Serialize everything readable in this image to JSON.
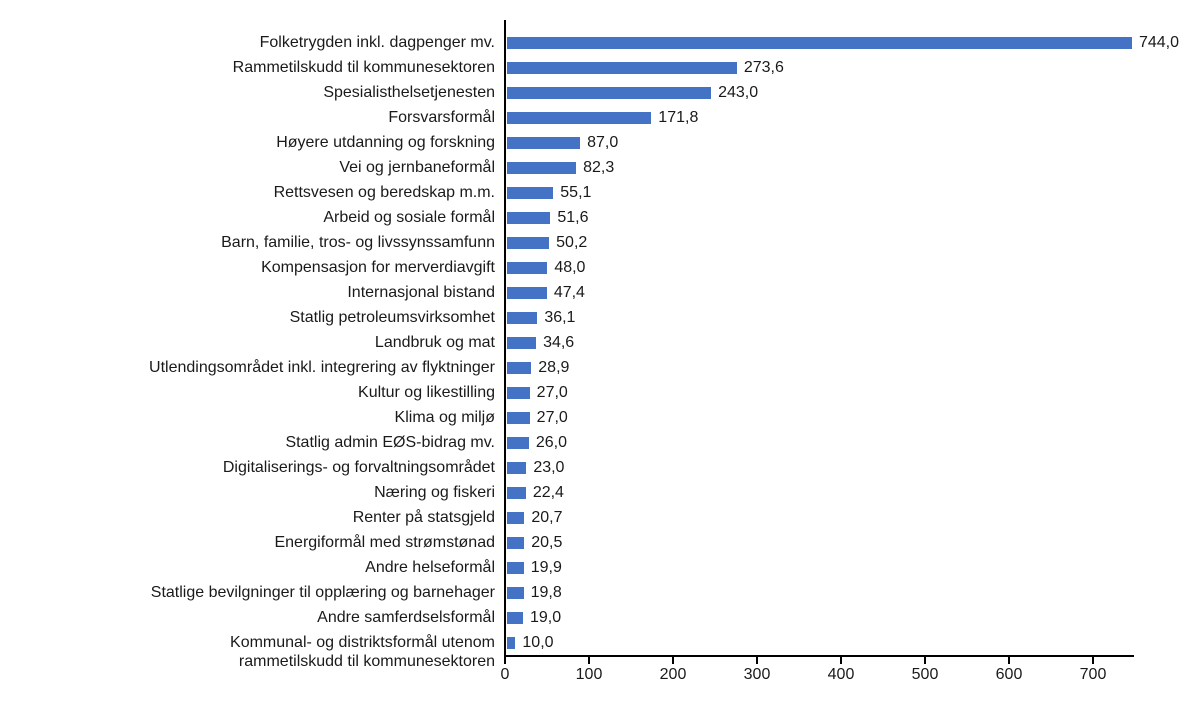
{
  "chart_data": {
    "type": "bar",
    "orientation": "horizontal",
    "title": "",
    "xlabel": "",
    "ylabel": "",
    "xlim": [
      0,
      750
    ],
    "xticks": [
      0,
      100,
      200,
      300,
      400,
      500,
      600,
      700
    ],
    "grid": false,
    "legend": false,
    "bar_color": "#4472C4",
    "axis_color": "#000000",
    "categories": [
      "Folketrygden inkl. dagpenger mv.",
      "Rammetilskudd til kommunesektoren",
      "Spesialisthelsetjenesten",
      "Forsvarsformål",
      "Høyere utdanning og forskning",
      "Vei og jernbaneformål",
      "Rettsvesen og beredskap m.m.",
      "Arbeid og sosiale formål",
      "Barn, familie, tros- og livssynssamfunn",
      "Kompensasjon for merverdiavgift",
      "Internasjonal bistand",
      "Statlig petroleumsvirksomhet",
      "Landbruk og mat",
      "Utlendingsområdet inkl. integrering av flyktninger",
      "Kultur og likestilling",
      "Klima og miljø",
      "Statlig admin EØS-bidrag mv.",
      "Digitaliserings- og forvaltningsområdet",
      "Næring og fiskeri",
      "Renter på statsgjeld",
      "Energiformål med strømstønad",
      "Andre helseformål",
      "Statlige bevilgninger til opplæring og barnehager",
      "Andre samferdselsformål",
      "Kommunal- og distriktsformål utenom\nrammetilskudd til kommunesektoren"
    ],
    "values": [
      744.0,
      273.6,
      243.0,
      171.8,
      87.0,
      82.3,
      55.1,
      51.6,
      50.2,
      48.0,
      47.4,
      36.1,
      34.6,
      28.9,
      27.0,
      27.0,
      26.0,
      23.0,
      22.4,
      20.7,
      20.5,
      19.9,
      19.8,
      19.0,
      10.0
    ],
    "value_labels": [
      "744,0",
      "273,6",
      "243,0",
      "171,8",
      "87,0",
      "82,3",
      "55,1",
      "51,6",
      "50,2",
      "48,0",
      "47,4",
      "36,1",
      "34,6",
      "28,9",
      "27,0",
      "27,0",
      "26,0",
      "23,0",
      "22,4",
      "20,7",
      "20,5",
      "19,9",
      "19,8",
      "19,0",
      "10,0"
    ]
  }
}
